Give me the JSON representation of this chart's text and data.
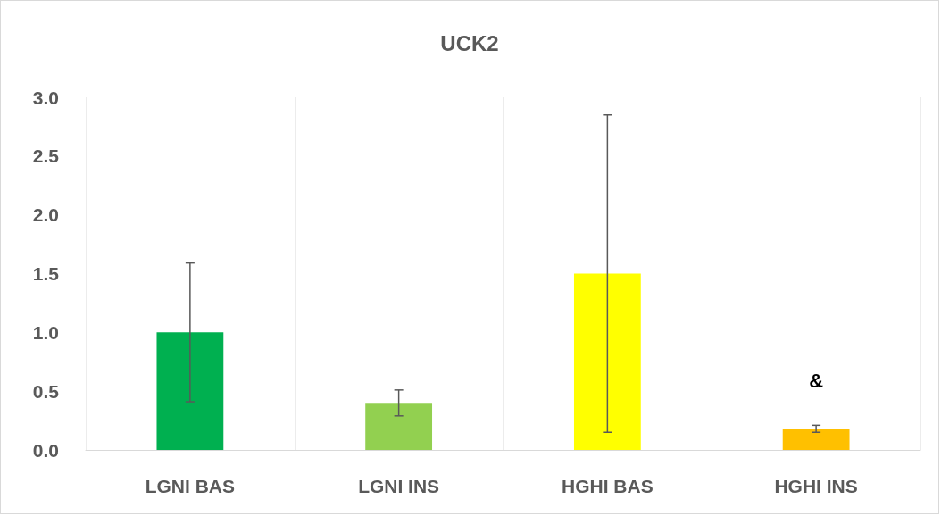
{
  "chart_data": {
    "type": "bar",
    "title": "UCK2",
    "categories": [
      "LGNI BAS",
      "LGNI INS",
      "HGHI BAS",
      "HGHI INS"
    ],
    "values": [
      1.0,
      0.4,
      1.5,
      0.18
    ],
    "colors": [
      "#00b050",
      "#92d050",
      "#ffff00",
      "#ffc000"
    ],
    "errors": [
      0.59,
      0.11,
      1.35,
      0.03
    ],
    "ylim": [
      0,
      3
    ],
    "yticks": [
      {
        "value": 0,
        "label": "0.0"
      },
      {
        "value": 0.5,
        "label": "0.5"
      },
      {
        "value": 1,
        "label": "1.0"
      },
      {
        "value": 1.5,
        "label": "1.5"
      },
      {
        "value": 2,
        "label": "2.0"
      },
      {
        "value": 2.5,
        "label": "2.5"
      },
      {
        "value": 3,
        "label": "3.0"
      }
    ],
    "grid": "x",
    "annotations": [
      "&"
    ]
  }
}
